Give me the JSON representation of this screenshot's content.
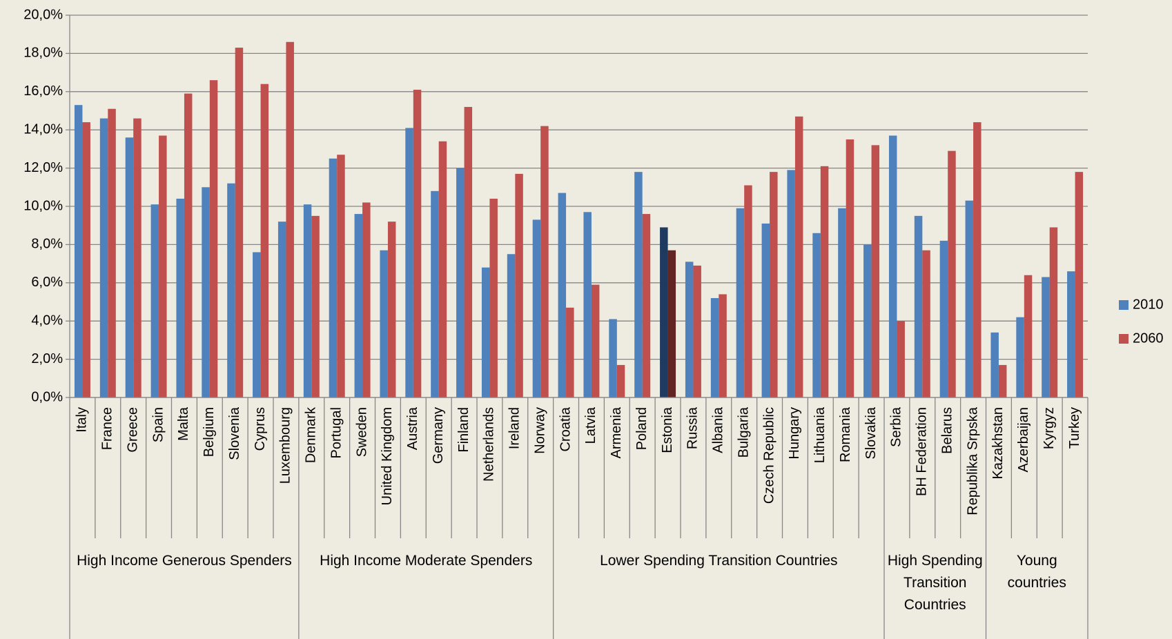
{
  "chart_data": {
    "type": "bar",
    "categories": [
      "Italy",
      "France",
      "Greece",
      "Spain",
      "Malta",
      "Belgium",
      "Slovenia",
      "Cyprus",
      "Luxembourg",
      "Denmark",
      "Portugal",
      "Sweden",
      "United Kingdom",
      "Austria",
      "Germany",
      "Finland",
      "Netherlands",
      "Ireland",
      "Norway",
      "Croatia",
      "Latvia",
      "Armenia",
      "Poland",
      "Estonia",
      "Russia",
      "Albania",
      "Bulgaria",
      "Czech Republic",
      "Hungary",
      "Lithuania",
      "Romania",
      "Slovakia",
      "Serbia",
      "BH Federation",
      "Belarus",
      "Republika Srpska",
      "Kazakhstan",
      "Azerbaijan",
      "Kyrgyz",
      "Turkey"
    ],
    "groups": [
      {
        "name": "High Income Generous Spenders",
        "size": 9
      },
      {
        "name": "High Income Moderate Spenders",
        "size": 10
      },
      {
        "name": "Lower Spending Transition Countries",
        "size": 13
      },
      {
        "name": "High Spending Transition Countries",
        "size": 4
      },
      {
        "name": "Young countries",
        "size": 4
      }
    ],
    "series": [
      {
        "name": "2010",
        "color": "#4f81bd",
        "highlight_color": "#1f3a5f",
        "values": [
          15.3,
          14.6,
          13.6,
          10.1,
          10.4,
          11.0,
          11.2,
          7.6,
          9.2,
          10.1,
          12.5,
          9.6,
          7.7,
          14.1,
          10.8,
          12.0,
          6.8,
          7.5,
          9.3,
          10.7,
          9.7,
          4.1,
          11.8,
          8.9,
          7.1,
          5.2,
          9.9,
          9.1,
          11.9,
          8.6,
          9.9,
          8.0,
          13.7,
          9.5,
          8.2,
          10.3,
          3.4,
          4.2,
          6.3,
          6.6
        ]
      },
      {
        "name": "2060",
        "color": "#c0504d",
        "highlight_color": "#632523",
        "values": [
          14.4,
          15.1,
          14.6,
          13.7,
          15.9,
          16.6,
          18.3,
          16.4,
          18.6,
          9.5,
          12.7,
          10.2,
          9.2,
          16.1,
          13.4,
          15.2,
          10.4,
          11.7,
          14.2,
          4.7,
          5.9,
          1.7,
          9.6,
          7.7,
          6.9,
          5.4,
          11.1,
          11.8,
          14.7,
          12.1,
          13.5,
          13.2,
          4.0,
          7.7,
          12.9,
          14.4,
          1.7,
          6.4,
          8.9,
          11.8
        ]
      }
    ],
    "highlight_category": "Estonia",
    "ylim": [
      0,
      20
    ],
    "yticks": [
      {
        "value": 0,
        "label": "0,0%"
      },
      {
        "value": 2,
        "label": "2,0%"
      },
      {
        "value": 4,
        "label": "4,0%"
      },
      {
        "value": 6,
        "label": "6,0%"
      },
      {
        "value": 8,
        "label": "8,0%"
      },
      {
        "value": 10,
        "label": "10,0%"
      },
      {
        "value": 12,
        "label": "12,0%"
      },
      {
        "value": 14,
        "label": "14,0%"
      },
      {
        "value": 16,
        "label": "16,0%"
      },
      {
        "value": 18,
        "label": "18,0%"
      },
      {
        "value": 20,
        "label": "20,0%"
      }
    ],
    "grid": true,
    "legend": "right"
  }
}
